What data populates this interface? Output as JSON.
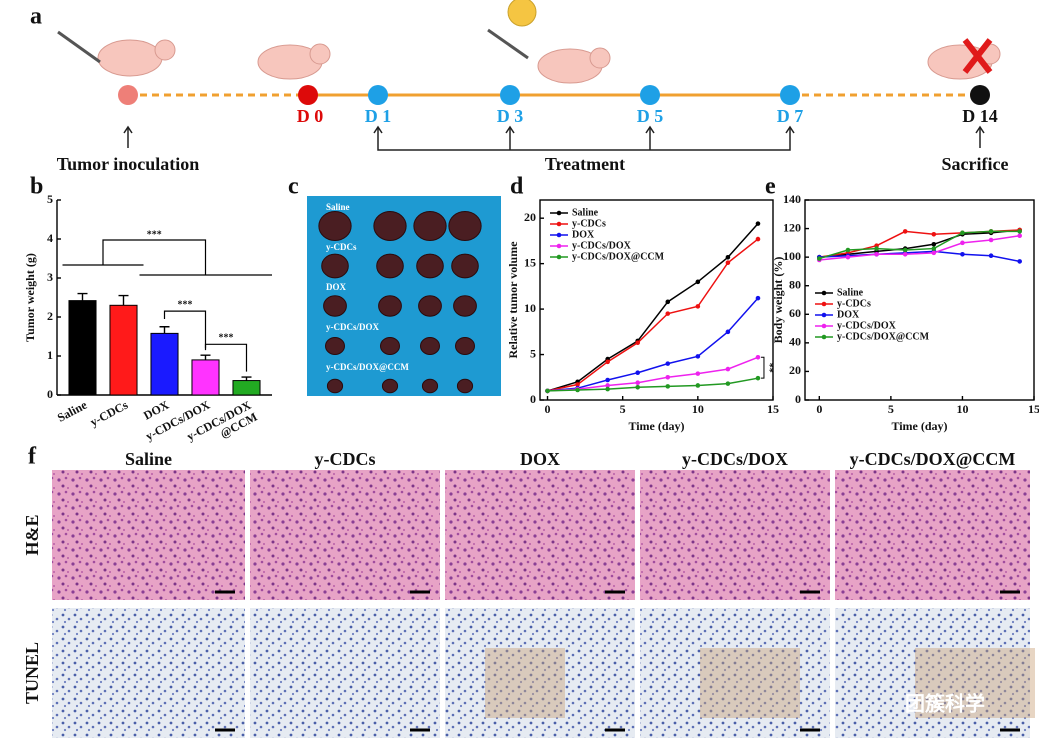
{
  "panel_labels": [
    "a",
    "b",
    "c",
    "d",
    "e",
    "f"
  ],
  "timeline": {
    "days": [
      "D 0",
      "D 1",
      "D 3",
      "D 5",
      "D 7",
      "D 14"
    ],
    "events": [
      "Tumor inoculation",
      "Treatment",
      "Sacrifice"
    ]
  },
  "photo_labels": [
    "Saline",
    "y-CDCs",
    "DOX",
    "y-CDCs/DOX",
    "y-CDCs/DOX@CCM"
  ],
  "chart_data": [
    {
      "type": "bar",
      "ylabel": "Tumor weight (g)",
      "categories": [
        "Saline",
        "y-CDCs",
        "DOX",
        "y-CDCs/DOX",
        "y-CDCs/DOX\n@CCM"
      ],
      "values": [
        2.42,
        2.3,
        1.58,
        0.9,
        0.37
      ],
      "errors": [
        0.18,
        0.25,
        0.17,
        0.12,
        0.09
      ],
      "colors": [
        "#000000",
        "#ff1a1a",
        "#1a1aff",
        "#ff33ff",
        "#22aa22"
      ],
      "ylim": [
        0,
        5
      ],
      "yticks": [
        0,
        1,
        2,
        3,
        4,
        5
      ],
      "annotations": [
        "***",
        "***",
        "***"
      ]
    },
    {
      "type": "line",
      "xlabel": "Time (day)",
      "ylabel": "Relative tumor volume",
      "x": [
        0,
        2,
        4,
        6,
        8,
        10,
        12,
        14
      ],
      "xlim": [
        -0.5,
        15
      ],
      "xticks": [
        0,
        5,
        10,
        15
      ],
      "ylim": [
        0,
        22
      ],
      "yticks": [
        0,
        5,
        10,
        15,
        20
      ],
      "legend": "upper left",
      "annotations": [
        "**"
      ],
      "series": [
        {
          "name": "Saline",
          "color": "#000000",
          "values": [
            1,
            2,
            4.5,
            6.5,
            10.8,
            13,
            15.7,
            19.4
          ]
        },
        {
          "name": "y-CDCs",
          "color": "#ee1111",
          "values": [
            1,
            1.7,
            4.2,
            6.3,
            9.5,
            10.3,
            15.1,
            17.7
          ]
        },
        {
          "name": "DOX",
          "color": "#1111ee",
          "values": [
            1,
            1.3,
            2.2,
            3,
            4,
            4.8,
            7.5,
            11.2
          ]
        },
        {
          "name": "y-CDCs/DOX",
          "color": "#ee22ee",
          "values": [
            1,
            1.2,
            1.6,
            1.9,
            2.5,
            2.9,
            3.4,
            4.7
          ]
        },
        {
          "name": "y-CDCs/DOX@CCM",
          "color": "#229922",
          "values": [
            1,
            1.1,
            1.2,
            1.4,
            1.5,
            1.6,
            1.8,
            2.4
          ]
        }
      ]
    },
    {
      "type": "line",
      "xlabel": "Time (day)",
      "ylabel": "Body weight (%)",
      "x": [
        0,
        2,
        4,
        6,
        8,
        10,
        12,
        14
      ],
      "xlim": [
        -1,
        15
      ],
      "xticks": [
        0,
        5,
        10,
        15
      ],
      "ylim": [
        0,
        140
      ],
      "yticks": [
        0,
        20,
        40,
        60,
        80,
        100,
        120,
        140
      ],
      "legend": "center left",
      "series": [
        {
          "name": "Saline",
          "color": "#000000",
          "values": [
            100,
            102,
            104,
            106,
            109,
            116,
            117,
            119
          ]
        },
        {
          "name": "y-CDCs",
          "color": "#ee1111",
          "values": [
            100,
            103,
            108,
            118,
            116,
            117,
            118,
            119
          ]
        },
        {
          "name": "DOX",
          "color": "#1111ee",
          "values": [
            100,
            101,
            102,
            103,
            104,
            102,
            101,
            97
          ]
        },
        {
          "name": "y-CDCs/DOX",
          "color": "#ee22ee",
          "values": [
            98,
            100,
            102,
            102,
            103,
            110,
            112,
            115
          ]
        },
        {
          "name": "y-CDCs/DOX@CCM",
          "color": "#229922",
          "values": [
            99,
            105,
            106,
            105,
            106,
            117,
            118,
            118
          ]
        }
      ]
    }
  ],
  "histology": {
    "columns": [
      "Saline",
      "y-CDCs",
      "DOX",
      "y-CDCs/DOX",
      "y-CDCs/DOX@CCM"
    ],
    "rows": [
      "H&E",
      "TUNEL"
    ]
  },
  "watermark": "团簇科学"
}
